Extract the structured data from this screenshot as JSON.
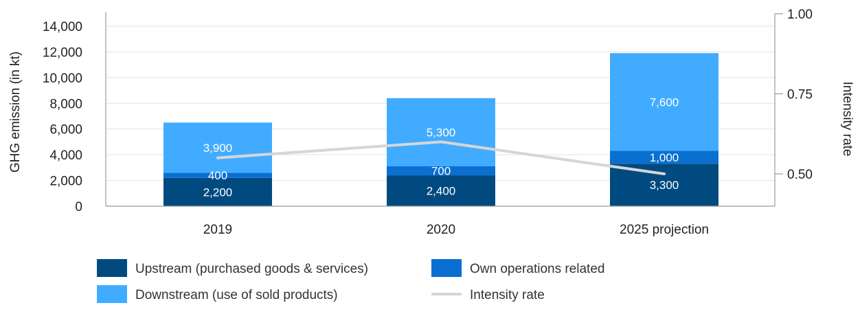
{
  "chart_data": {
    "type": "bar",
    "stacked": true,
    "categories": [
      "2019",
      "2020",
      "2025 projection"
    ],
    "ylabel": "GHG emission (in kt)",
    "ylim": [
      0,
      14000
    ],
    "y_ticks": [
      "0",
      "2,000",
      "4,000",
      "6,000",
      "8,000",
      "10,000",
      "12,000",
      "14,000"
    ],
    "y2label": "Intensity rate",
    "y2lim": [
      0.4,
      1.0
    ],
    "y2_ticks": [
      "0.50",
      "0.75",
      "1.00"
    ],
    "grid": true,
    "legend_position": "bottom",
    "series": [
      {
        "name": "Upstream (purchased goods & services)",
        "color": "#004a80",
        "values": [
          2200,
          2400,
          3300
        ],
        "labels": [
          "2,200",
          "2,400",
          "3,300"
        ]
      },
      {
        "name": "Own operations related",
        "color": "#0a6fd1",
        "values": [
          400,
          700,
          1000
        ],
        "labels": [
          "400",
          "700",
          "1,000"
        ]
      },
      {
        "name": "Downstream (use of sold products)",
        "color": "#41acff",
        "values": [
          3900,
          5300,
          7600
        ],
        "labels": [
          "3,900",
          "5,300",
          "7,600"
        ]
      }
    ],
    "line_series": {
      "name": "Intensity rate",
      "color": "#d6d6d6",
      "axis": "right",
      "values": [
        0.55,
        0.6,
        0.5
      ]
    }
  }
}
